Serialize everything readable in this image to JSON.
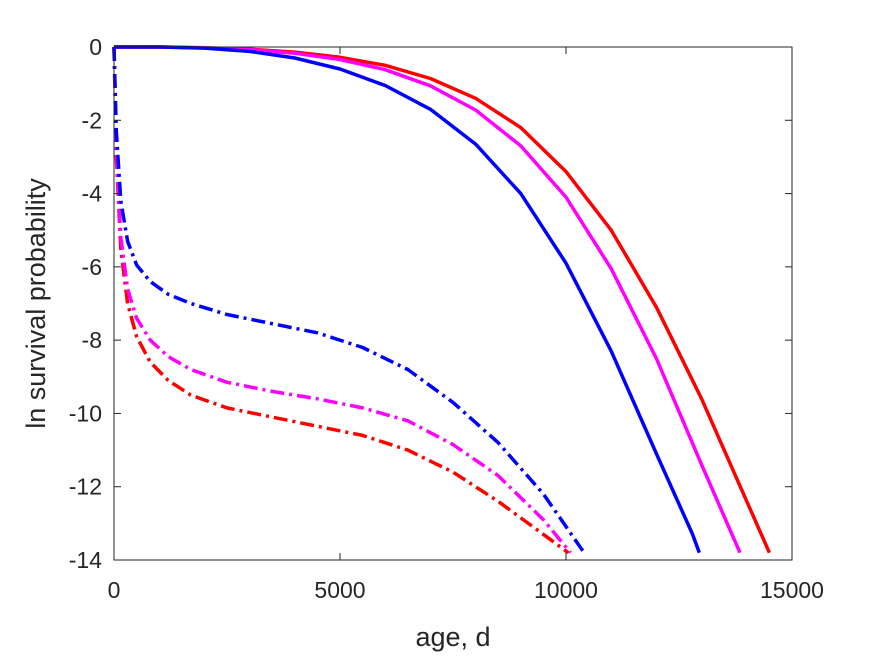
{
  "chart_data": {
    "type": "line",
    "xlabel": "age, d",
    "ylabel": "ln survival probability",
    "xlim": [
      0,
      15000
    ],
    "ylim": [
      -14,
      0
    ],
    "xticks": [
      0,
      5000,
      10000,
      15000
    ],
    "yticks": [
      0,
      -2,
      -4,
      -6,
      -8,
      -10,
      -12,
      -14
    ],
    "grid": false,
    "legend": "none",
    "series": [
      {
        "color": "#ff0000",
        "line_style": "solid",
        "x": [
          0,
          1000,
          2000,
          3000,
          4000,
          5000,
          6000,
          7000,
          8000,
          9000,
          10000,
          11000,
          12000,
          13000,
          14000,
          14500
        ],
        "y": [
          0,
          0,
          -0.02,
          -0.06,
          -0.14,
          -0.28,
          -0.5,
          -0.86,
          -1.4,
          -2.2,
          -3.4,
          -5.0,
          -7.1,
          -9.6,
          -12.4,
          -13.8
        ]
      },
      {
        "color": "#ff00ff",
        "line_style": "solid",
        "x": [
          0,
          1000,
          2000,
          3000,
          4000,
          5000,
          6000,
          7000,
          8000,
          9000,
          10000,
          11000,
          12000,
          13000,
          13850
        ],
        "y": [
          0,
          0,
          -0.02,
          -0.07,
          -0.17,
          -0.34,
          -0.62,
          -1.06,
          -1.72,
          -2.7,
          -4.1,
          -6.05,
          -8.5,
          -11.4,
          -13.8
        ]
      },
      {
        "color": "#0000ff",
        "line_style": "solid",
        "x": [
          0,
          1000,
          2000,
          3000,
          4000,
          5000,
          6000,
          7000,
          8000,
          9000,
          10000,
          11000,
          12000,
          12800,
          12950
        ],
        "y": [
          0,
          0,
          -0.03,
          -0.12,
          -0.3,
          -0.6,
          -1.05,
          -1.7,
          -2.65,
          -4.0,
          -5.9,
          -8.3,
          -11.1,
          -13.3,
          -13.8
        ]
      },
      {
        "color": "#ff0000",
        "line_style": "dashdot",
        "x": [
          0,
          50,
          150,
          300,
          500,
          800,
          1200,
          1700,
          2500,
          3500,
          4500,
          5500,
          6500,
          7500,
          8500,
          9500,
          10050
        ],
        "y": [
          0,
          -3.0,
          -5.5,
          -7.0,
          -7.9,
          -8.6,
          -9.1,
          -9.5,
          -9.85,
          -10.1,
          -10.35,
          -10.6,
          -11.0,
          -11.6,
          -12.4,
          -13.3,
          -13.8
        ]
      },
      {
        "color": "#ff00ff",
        "line_style": "dashdot",
        "x": [
          0,
          50,
          150,
          300,
          500,
          800,
          1200,
          1700,
          2500,
          3500,
          4500,
          5500,
          6500,
          7500,
          8500,
          9500,
          10100
        ],
        "y": [
          0,
          -2.8,
          -5.2,
          -6.6,
          -7.4,
          -8.0,
          -8.45,
          -8.8,
          -9.15,
          -9.4,
          -9.6,
          -9.85,
          -10.2,
          -10.85,
          -11.7,
          -12.9,
          -13.8
        ]
      },
      {
        "color": "#0000ff",
        "line_style": "dashdot",
        "x": [
          0,
          50,
          150,
          300,
          500,
          800,
          1200,
          1700,
          2500,
          3500,
          4500,
          5500,
          6500,
          7500,
          8500,
          9500,
          10400
        ],
        "y": [
          0,
          -2.3,
          -4.2,
          -5.3,
          -5.95,
          -6.4,
          -6.75,
          -7.0,
          -7.3,
          -7.55,
          -7.8,
          -8.2,
          -8.8,
          -9.7,
          -10.8,
          -12.2,
          -13.8
        ]
      }
    ]
  }
}
